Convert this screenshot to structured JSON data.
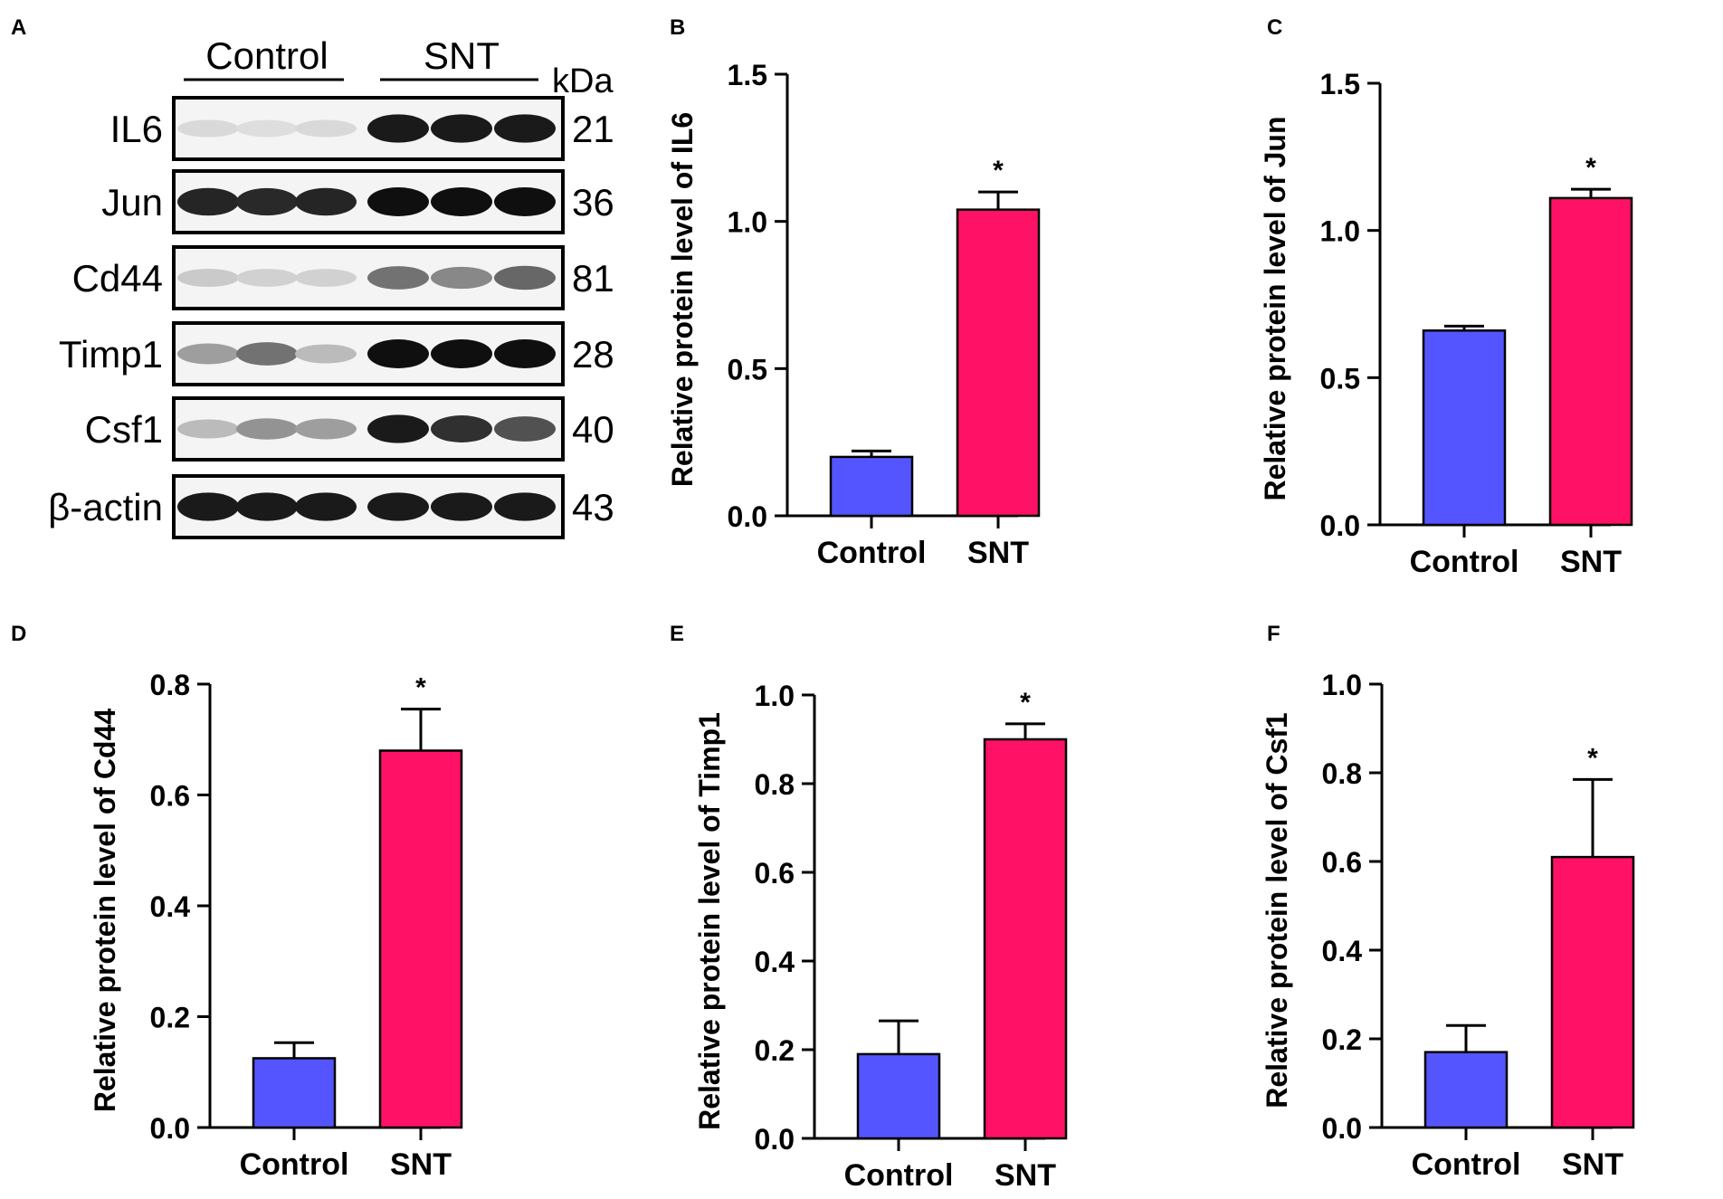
{
  "panel_letters": [
    "A",
    "B",
    "C",
    "D",
    "E",
    "F"
  ],
  "blot": {
    "groups": [
      "Control",
      "SNT"
    ],
    "kda_label": "kDa",
    "bands": [
      {
        "name": "IL6",
        "kda": "21"
      },
      {
        "name": "Jun",
        "kda": "36"
      },
      {
        "name": "Cd44",
        "kda": "81"
      },
      {
        "name": "Timp1",
        "kda": "28"
      },
      {
        "name": "Csf1",
        "kda": "40"
      },
      {
        "name": "β-actin",
        "kda": "43"
      }
    ]
  },
  "colors": {
    "control": "#5555ff",
    "snt": "#ff1166",
    "axis": "#000000"
  },
  "chart_data": [
    {
      "type": "bar",
      "panel": "B",
      "categories": [
        "Control",
        "SNT"
      ],
      "values": [
        0.2,
        1.04
      ],
      "errors": [
        0.02,
        0.06
      ],
      "significance": [
        "",
        "*"
      ],
      "ylabel": "Relative protein level of IL6",
      "ylim": [
        0,
        1.5
      ],
      "yticks": [
        0.0,
        0.5,
        1.0,
        1.5
      ],
      "decimals": 1
    },
    {
      "type": "bar",
      "panel": "C",
      "categories": [
        "Control",
        "SNT"
      ],
      "values": [
        0.66,
        1.11
      ],
      "errors": [
        0.015,
        0.03
      ],
      "significance": [
        "",
        "*"
      ],
      "ylabel": "Relative protein level of Jun",
      "ylim": [
        0,
        1.5
      ],
      "yticks": [
        0.0,
        0.5,
        1.0,
        1.5
      ],
      "decimals": 1
    },
    {
      "type": "bar",
      "panel": "D",
      "categories": [
        "Control",
        "SNT"
      ],
      "values": [
        0.125,
        0.68
      ],
      "errors": [
        0.028,
        0.075
      ],
      "significance": [
        "",
        "*"
      ],
      "ylabel": "Relative protein level of Cd44",
      "ylim": [
        0,
        0.8
      ],
      "yticks": [
        0.0,
        0.2,
        0.4,
        0.6,
        0.8
      ],
      "decimals": 1
    },
    {
      "type": "bar",
      "panel": "E",
      "categories": [
        "Control",
        "SNT"
      ],
      "values": [
        0.19,
        0.9
      ],
      "errors": [
        0.075,
        0.035
      ],
      "significance": [
        "",
        "*"
      ],
      "ylabel": "Relative protein level of Timp1",
      "ylim": [
        0,
        1.0
      ],
      "yticks": [
        0.0,
        0.2,
        0.4,
        0.6,
        0.8,
        1.0
      ],
      "decimals": 1
    },
    {
      "type": "bar",
      "panel": "F",
      "categories": [
        "Control",
        "SNT"
      ],
      "values": [
        0.17,
        0.61
      ],
      "errors": [
        0.06,
        0.175
      ],
      "significance": [
        "",
        "*"
      ],
      "ylabel": "Relative protein level of Csf1",
      "ylim": [
        0,
        1.0
      ],
      "yticks": [
        0.0,
        0.2,
        0.4,
        0.6,
        0.8,
        1.0
      ],
      "decimals": 1
    }
  ]
}
